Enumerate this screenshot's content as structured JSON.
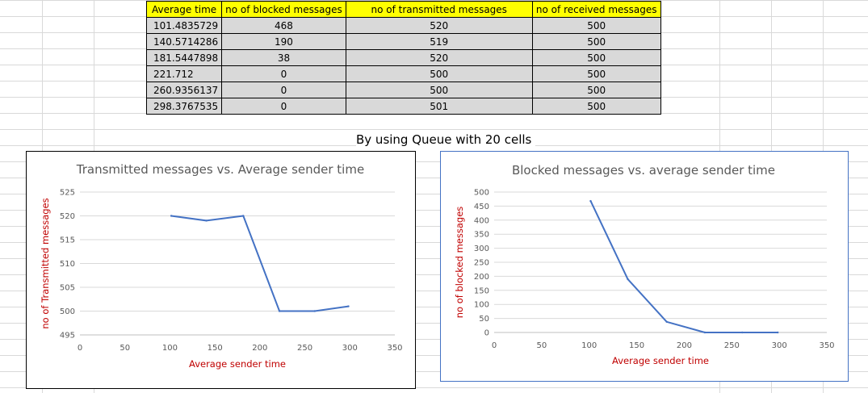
{
  "table": {
    "headers": [
      "Average time",
      "no of blocked messages",
      "no of transmitted messages",
      "no of received messages"
    ],
    "rows": [
      [
        "101.4835729",
        "468",
        "520",
        "500"
      ],
      [
        "140.5714286",
        "190",
        "519",
        "500"
      ],
      [
        "181.5447898",
        "38",
        "520",
        "500"
      ],
      [
        "221.712",
        "0",
        "500",
        "500"
      ],
      [
        "260.9356137",
        "0",
        "500",
        "500"
      ],
      [
        "298.3767535",
        "0",
        "501",
        "500"
      ]
    ]
  },
  "caption": "By using Queue with 20 cells",
  "chart_data": [
    {
      "type": "line",
      "title": "Transmitted messages vs. Average sender time",
      "xlabel": "Average sender time",
      "ylabel": "no of Transmitted messages",
      "xlim": [
        0,
        350
      ],
      "ylim": [
        495,
        525
      ],
      "x_ticks": [
        0,
        50,
        100,
        150,
        200,
        250,
        300,
        350
      ],
      "y_ticks": [
        495,
        500,
        505,
        510,
        515,
        520,
        525
      ],
      "grid": true,
      "color": "#4472c4",
      "x": [
        101.4835729,
        140.5714286,
        181.5447898,
        221.712,
        260.9356137,
        298.3767535
      ],
      "y": [
        520,
        519,
        520,
        500,
        500,
        501
      ]
    },
    {
      "type": "line",
      "title": "Blocked messages vs. average sender time",
      "xlabel": "Average sender time",
      "ylabel": "no of blocked messages",
      "xlim": [
        0,
        350
      ],
      "ylim": [
        0,
        500
      ],
      "x_ticks": [
        0,
        50,
        100,
        150,
        200,
        250,
        300,
        350
      ],
      "y_ticks": [
        0,
        50,
        100,
        150,
        200,
        250,
        300,
        350,
        400,
        450,
        500
      ],
      "grid": true,
      "color": "#4472c4",
      "x": [
        101.4835729,
        140.5714286,
        181.5447898,
        221.712,
        260.9356137,
        298.3767535
      ],
      "y": [
        468,
        190,
        38,
        0,
        0,
        0
      ]
    }
  ]
}
